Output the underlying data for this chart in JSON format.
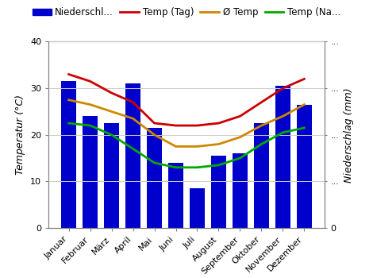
{
  "months": [
    "Januar",
    "Februar",
    "März",
    "April",
    "Mai",
    "Juni",
    "Juli",
    "August",
    "September",
    "Oktober",
    "November",
    "Dezember"
  ],
  "niederschlag": [
    31.5,
    24,
    22.5,
    31,
    21.5,
    14,
    8.5,
    15.5,
    16,
    22.5,
    30.5,
    26.5
  ],
  "temp_tag": [
    33,
    31.5,
    29,
    27,
    22.5,
    22,
    22,
    22.5,
    24,
    27,
    30,
    32
  ],
  "avg_temp": [
    27.5,
    26.5,
    25,
    23.5,
    20,
    17.5,
    17.5,
    18,
    19.5,
    22,
    24,
    26.5
  ],
  "temp_nacht": [
    22.5,
    22,
    20,
    17,
    14,
    13,
    13,
    13.5,
    15,
    18,
    20.5,
    21.5
  ],
  "bar_color": "#0000cc",
  "temp_tag_color": "#cc0000",
  "avg_temp_color": "#cc8800",
  "temp_nacht_color": "#00aa00",
  "ylim_left": [
    0,
    40
  ],
  "ylim_right": [
    0,
    40
  ],
  "ylabel_left": "Temperatur (°C)",
  "ylabel_right": "Niederschlag (mm)",
  "legend_labels": [
    "Niederschl...",
    "Temp (Tag)",
    "Ø Temp",
    "Temp (Na..."
  ],
  "axis_fontsize": 9,
  "tick_fontsize": 8,
  "legend_fontsize": 8.5,
  "right_ytick_labels": [
    "0",
    "...",
    "...",
    "...",
    "..."
  ],
  "right_ytick_positions": [
    0,
    10,
    20,
    30,
    40
  ],
  "left_ytick_positions": [
    0,
    10,
    20,
    30,
    40
  ],
  "grid_color": "#cccccc",
  "bar_width": 0.72
}
